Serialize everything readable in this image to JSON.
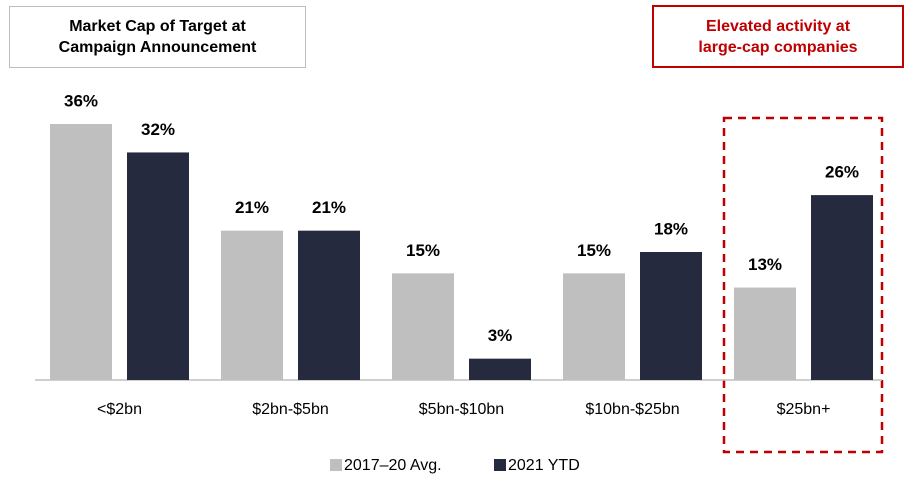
{
  "chart_data": {
    "type": "bar",
    "title": "Market Cap of Target at Campaign Announcement",
    "annotation": "Elevated activity at large-cap companies",
    "categories": [
      "<$2bn",
      "$2bn-$5bn",
      "$5bn-$10bn",
      "$10bn-$25bn",
      "$25bn+"
    ],
    "series": [
      {
        "name": "2017–20 Avg.",
        "color": "#bfbfbf",
        "values": [
          36,
          21,
          15,
          15,
          13
        ],
        "value_labels": [
          "36%",
          "21%",
          "15%",
          "15%",
          "13%"
        ]
      },
      {
        "name": "2021 YTD",
        "color": "#252a3f",
        "values": [
          32,
          21,
          3,
          18,
          26
        ],
        "value_labels": [
          "32%",
          "21%",
          "3%",
          "18%",
          "26%"
        ]
      }
    ]
  }
}
